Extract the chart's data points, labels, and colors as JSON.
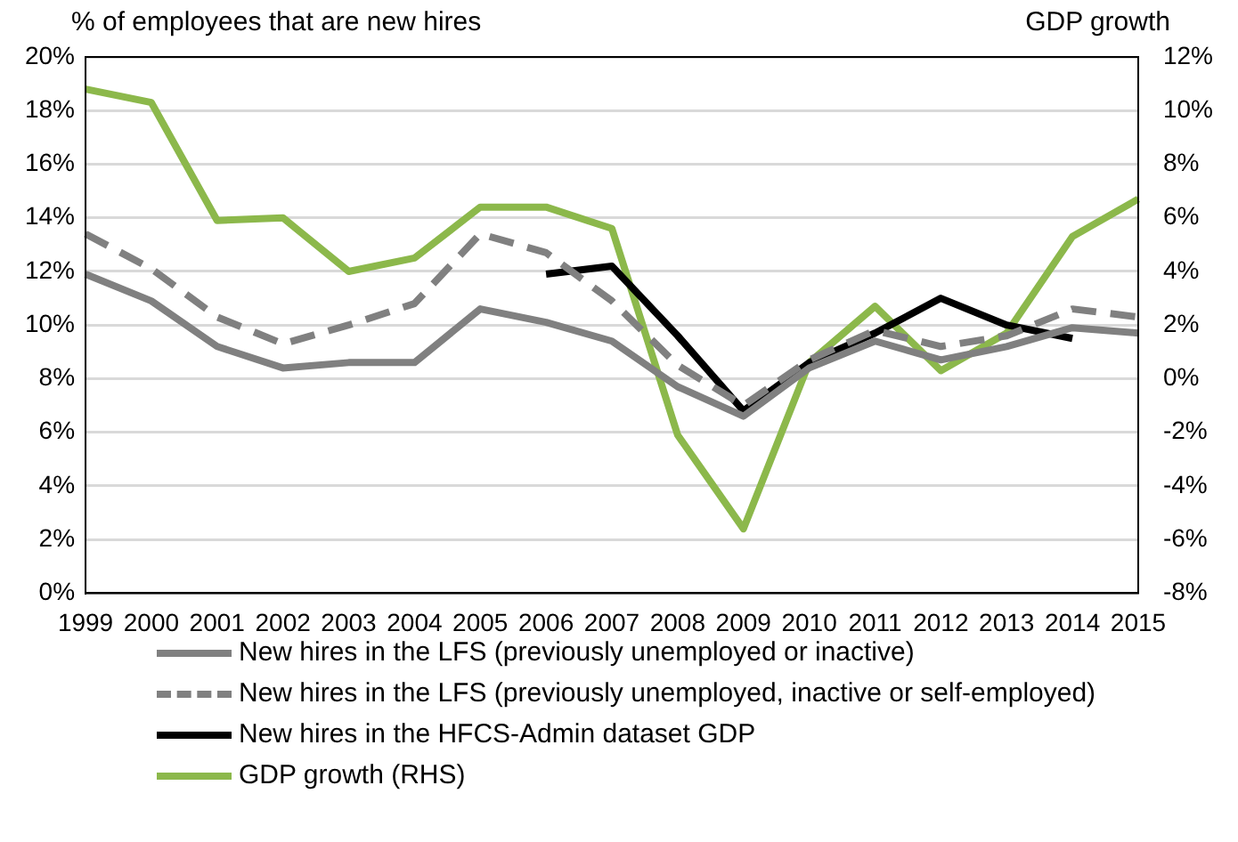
{
  "chart_data": {
    "type": "line",
    "ylabel": "% of employees that are new hires",
    "y2label": "GDP growth",
    "categories": [
      "1999",
      "2000",
      "2001",
      "2002",
      "2003",
      "2004",
      "2005",
      "2006",
      "2007",
      "2008",
      "2009",
      "2010",
      "2011",
      "2012",
      "2013",
      "2014",
      "2015"
    ],
    "series": [
      {
        "name": "New hires in the LFS (previously unemployed or inactive)",
        "color": "#808080",
        "line_style": "solid",
        "values": [
          11.9,
          10.9,
          9.2,
          8.4,
          8.6,
          8.6,
          10.6,
          10.1,
          9.4,
          7.7,
          6.6,
          8.4,
          9.4,
          8.7,
          9.2,
          9.9,
          9.7
        ]
      },
      {
        "name": "New hires in the LFS (previously unemployed, inactive or self-employed)",
        "color": "#808080",
        "line_style": "dashed",
        "values": [
          13.4,
          12.1,
          10.3,
          9.3,
          10.0,
          10.8,
          13.4,
          12.7,
          10.9,
          8.5,
          7.0,
          8.7,
          9.8,
          9.2,
          9.6,
          10.6,
          10.3
        ]
      },
      {
        "name": "New hires in the HFCS-Admin dataset GDP",
        "color": "#000000",
        "line_style": "solid",
        "values": [
          null,
          null,
          null,
          null,
          null,
          null,
          null,
          11.9,
          12.2,
          9.6,
          6.8,
          8.6,
          9.7,
          11.0,
          10.0,
          9.5,
          null
        ]
      },
      {
        "name": "GDP growth (RHS)",
        "color": "#8cb84b",
        "line_style": "solid",
        "axis": "y2",
        "values": [
          10.8,
          10.3,
          5.9,
          6.0,
          4.0,
          4.5,
          6.4,
          6.4,
          5.6,
          -2.1,
          -5.6,
          0.6,
          2.7,
          0.3,
          1.7,
          5.3,
          6.7
        ]
      }
    ],
    "ylim": [
      0,
      20
    ],
    "yticks": [
      {
        "value": 0,
        "label": "0%"
      },
      {
        "value": 2,
        "label": "2%"
      },
      {
        "value": 4,
        "label": "4%"
      },
      {
        "value": 6,
        "label": "6%"
      },
      {
        "value": 8,
        "label": "8%"
      },
      {
        "value": 10,
        "label": "10%"
      },
      {
        "value": 12,
        "label": "12%"
      },
      {
        "value": 14,
        "label": "14%"
      },
      {
        "value": 16,
        "label": "16%"
      },
      {
        "value": 18,
        "label": "18%"
      },
      {
        "value": 20,
        "label": "20%"
      }
    ],
    "y2lim": [
      -8,
      12
    ],
    "y2ticks": [
      {
        "value": -8,
        "label": "-8%"
      },
      {
        "value": -6,
        "label": "-6%"
      },
      {
        "value": -4,
        "label": "-4%"
      },
      {
        "value": -2,
        "label": "-2%"
      },
      {
        "value": 0,
        "label": "0%"
      },
      {
        "value": 2,
        "label": "2%"
      },
      {
        "value": 4,
        "label": "4%"
      },
      {
        "value": 6,
        "label": "6%"
      },
      {
        "value": 8,
        "label": "8%"
      },
      {
        "value": 10,
        "label": "10%"
      },
      {
        "value": 12,
        "label": "12%"
      }
    ],
    "grid": "y",
    "legend": "bottom",
    "marker": "none"
  }
}
